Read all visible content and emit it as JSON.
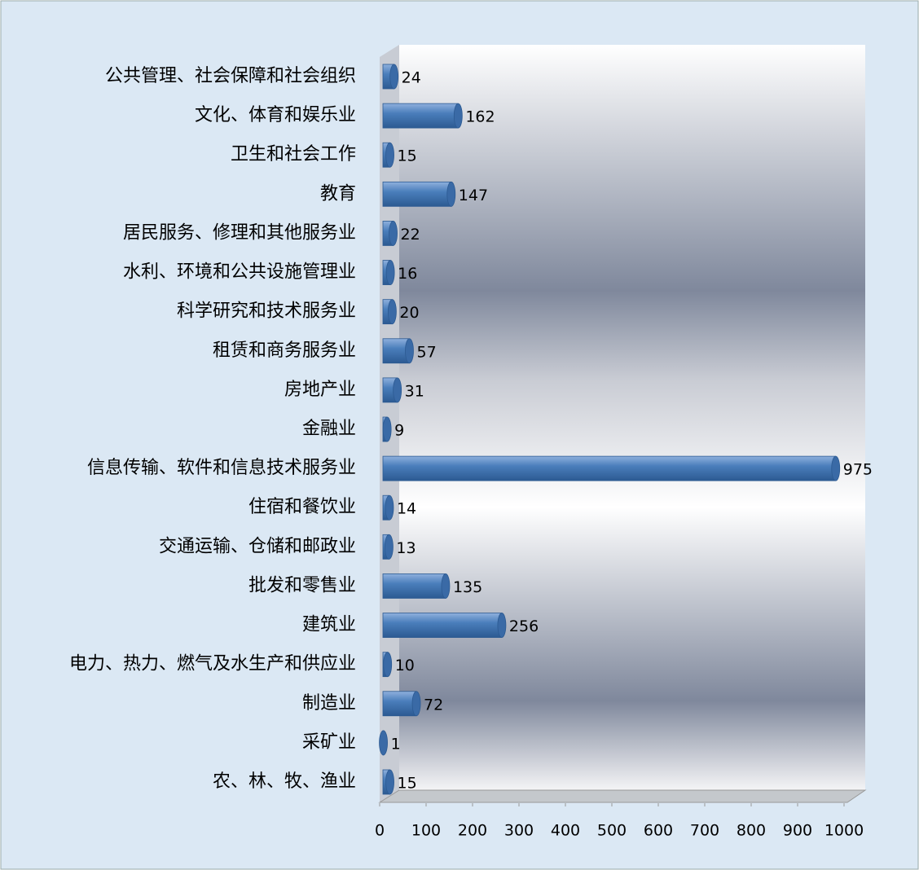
{
  "chart_data": {
    "type": "bar",
    "orientation": "horizontal",
    "categories": [
      "公共管理、社会保障和社会组织",
      "文化、体育和娱乐业",
      "卫生和社会工作",
      "教育",
      "居民服务、修理和其他服务业",
      "水利、环境和公共设施管理业",
      "科学研究和技术服务业",
      "租赁和商务服务业",
      "房地产业",
      "金融业",
      "信息传输、软件和信息技术服务业",
      "住宿和餐饮业",
      "交通运输、仓储和邮政业",
      "批发和零售业",
      "建筑业",
      "电力、热力、燃气及水生产和供应业",
      "制造业",
      "采矿业",
      "农、林、牧、渔业"
    ],
    "values": [
      24,
      162,
      15,
      147,
      22,
      16,
      20,
      57,
      31,
      9,
      975,
      14,
      13,
      135,
      256,
      10,
      72,
      1,
      15
    ],
    "color": "#4a7ebb",
    "xlim": [
      0,
      1000
    ],
    "xticks": [
      0,
      100,
      200,
      300,
      400,
      500,
      600,
      700,
      800,
      900,
      1000
    ]
  }
}
